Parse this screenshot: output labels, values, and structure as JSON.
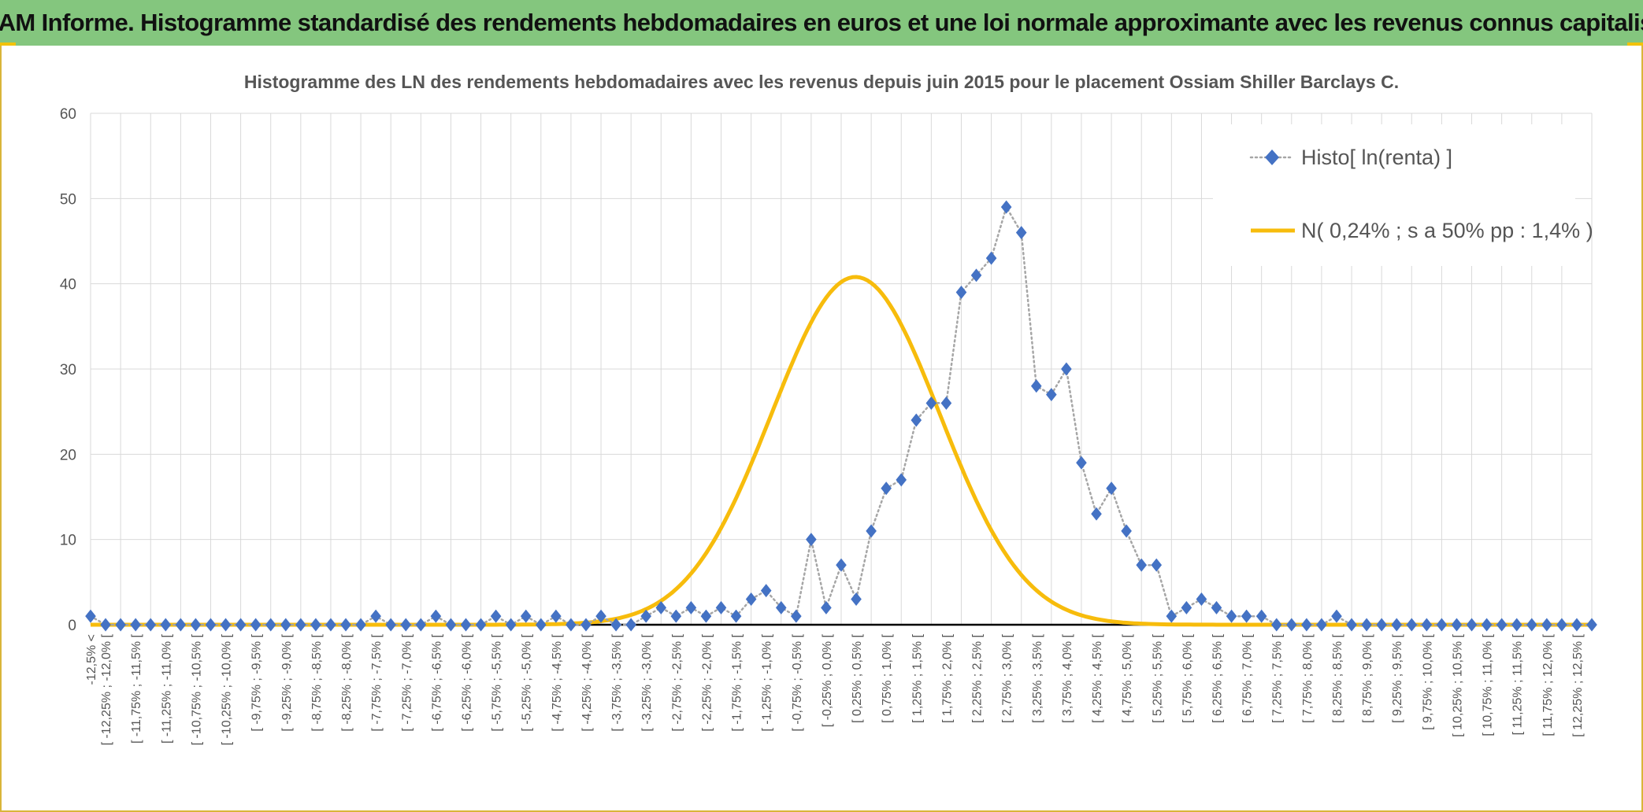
{
  "banner": {
    "title": "ADAM Informe. Histogramme standardisé des rendements hebdomadaires en euros et une loi normale approximante avec les revenus connus capitalisés"
  },
  "chart_data": {
    "type": "line",
    "title": "Histogramme des LN des rendements hebdomadaires avec les revenus depuis juin 2015 pour le placement Ossiam Shiller Barclays C.",
    "ylim": [
      0,
      60
    ],
    "yticks": [
      0,
      10,
      20,
      30,
      40,
      50,
      60
    ],
    "grid": true,
    "legend_position": "top-right",
    "categories": [
      "-12,5% <",
      "[ -12,25% ; -12,0% [",
      "[ -11,75% ; -11,5% [",
      "[ -11,25% ; -11,0% [",
      "[ -10,75% ; -10,5% [",
      "[ -10,25% ; -10,0% [",
      "[ -9,75% ; -9,5% [",
      "[ -9,25% ; -9,0% [",
      "[ -8,75% ; -8,5% [",
      "[ -8,25% ; -8,0% [",
      "[ -7,75% ; -7,5% [",
      "[ -7,25% ; -7,0% [",
      "[ -6,75% ; -6,5% [",
      "[ -6,25% ; -6,0% [",
      "[ -5,75% ; -5,5% [",
      "[ -5,25% ; -5,0% [",
      "[ -4,75% ; -4,5% [",
      "[ -4,25% ; -4,0% [",
      "[ -3,75% ; -3,5% [",
      "[ -3,25% ; -3,0% [",
      "[ -2,75% ; -2,5% [",
      "[ -2,25% ; -2,0% [",
      "[ -1,75% ; -1,5% [",
      "[ -1,25% ; -1,0% [",
      "[ -0,75% ; -0,5% [",
      "[ -0,25% ; 0,0% [",
      "[ 0,25% ; 0,5% [",
      "[ 0,75% ; 1,0% [",
      "[ 1,25% ; 1,5% [",
      "[ 1,75% ; 2,0% [",
      "[ 2,25% ; 2,5% [",
      "[ 2,75% ; 3,0% [",
      "[ 3,25% ; 3,5% [",
      "[ 3,75% ; 4,0% [",
      "[ 4,25% ; 4,5% [",
      "[ 4,75% ; 5,0% [",
      "[ 5,25% ; 5,5% [",
      "[ 5,75% ; 6,0% [",
      "[ 6,25% ; 6,5% [",
      "[ 6,75% ; 7,0% [",
      "[ 7,25% ; 7,5% [",
      "[ 7,75% ; 8,0% [",
      "[ 8,25% ; 8,5% [",
      "[ 8,75% ; 9,0% [",
      "[ 9,25% ; 9,5% [",
      "[ 9,75% ; 10,0% [",
      "[ 10,25% ; 10,5% [",
      "[ 10,75% ; 11,0% [",
      "[ 11,25% ; 11,5% [",
      "[ 11,75% ; 12,0% [",
      "[ 12,25% ; 12,5% ["
    ],
    "x": [
      -12.5,
      -12.25,
      -12.0,
      -11.75,
      -11.5,
      -11.25,
      -11.0,
      -10.75,
      -10.5,
      -10.25,
      -10.0,
      -9.75,
      -9.5,
      -9.25,
      -9.0,
      -8.75,
      -8.5,
      -8.25,
      -8.0,
      -7.75,
      -7.5,
      -7.25,
      -7.0,
      -6.75,
      -6.5,
      -6.25,
      -6.0,
      -5.75,
      -5.5,
      -5.25,
      -5.0,
      -4.75,
      -4.5,
      -4.25,
      -4.0,
      -3.75,
      -3.5,
      -3.25,
      -3.0,
      -2.75,
      -2.5,
      -2.25,
      -2.0,
      -1.75,
      -1.5,
      -1.25,
      -1.0,
      -0.75,
      -0.5,
      -0.25,
      0.0,
      0.25,
      0.5,
      0.75,
      1.0,
      1.25,
      1.5,
      1.75,
      2.0,
      2.25,
      2.5,
      2.75,
      3.0,
      3.25,
      3.5,
      3.75,
      4.0,
      4.25,
      4.5,
      4.75,
      5.0,
      5.25,
      5.5,
      5.75,
      6.0,
      6.25,
      6.5,
      6.75,
      7.0,
      7.25,
      7.5,
      7.75,
      8.0,
      8.25,
      8.5,
      8.75,
      9.0,
      9.25,
      9.5,
      9.75,
      10.0,
      10.25,
      10.5,
      10.75,
      11.0,
      11.25,
      11.5,
      11.75,
      12.0,
      12.25,
      12.5
    ],
    "series": [
      {
        "name": "Histo[ ln(renta) ]",
        "style": "dotted-line-diamond-markers",
        "color": "#4472c4",
        "line_color": "#a6a6a6",
        "values": [
          1,
          0,
          0,
          0,
          0,
          0,
          0,
          0,
          0,
          0,
          0,
          0,
          0,
          0,
          0,
          0,
          0,
          0,
          0,
          1,
          0,
          0,
          0,
          1,
          0,
          0,
          0,
          1,
          0,
          1,
          0,
          1,
          0,
          0,
          1,
          0,
          0,
          1,
          2,
          1,
          2,
          1,
          2,
          1,
          3,
          4,
          2,
          1,
          10,
          2,
          7,
          3,
          11,
          16,
          17,
          24,
          26,
          26,
          39,
          41,
          43,
          49,
          46,
          28,
          27,
          30,
          19,
          13,
          16,
          11,
          7,
          7,
          1,
          2,
          3,
          2,
          1,
          1,
          1,
          0,
          0,
          0,
          0,
          1,
          0,
          0,
          0,
          0,
          0,
          0,
          0,
          0,
          0,
          0,
          0,
          0,
          0,
          0,
          0,
          0,
          0
        ]
      },
      {
        "name": "N( 0,24% ; s a 50% pp : 1,4% )",
        "style": "smooth-line",
        "color": "#f7bc0c",
        "mean": 0.24,
        "stdev": 1.4,
        "peak": 40.8
      }
    ]
  }
}
